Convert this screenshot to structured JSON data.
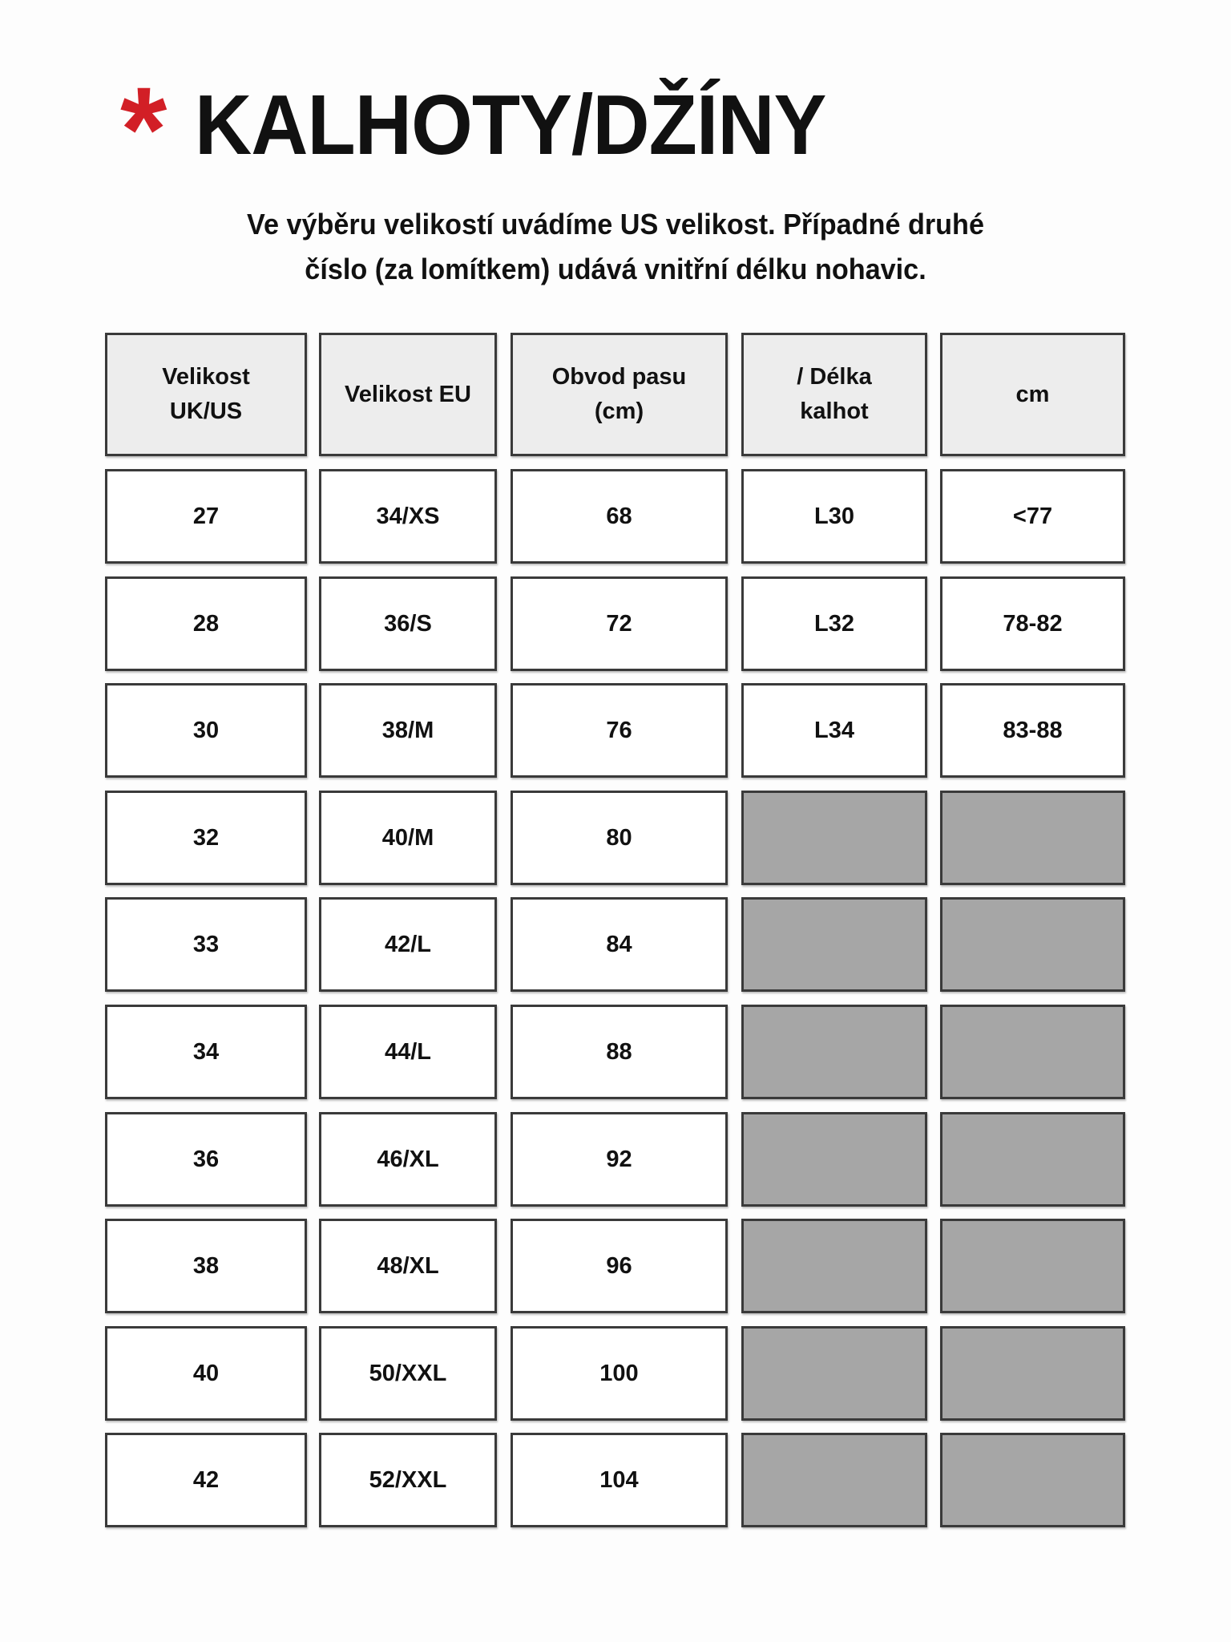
{
  "title": "KALHOTY/DŽÍNY",
  "asterisk": "*",
  "subtitle_lines": [
    "Ve výběru velikostí uvádíme US velikost. Případné druhé",
    "číslo (za lomítkem) udává vnitřní délku nohavic."
  ],
  "colors": {
    "accent": "#d21f26",
    "header_bg": "#ededed",
    "unavailable": "#a6a6a6"
  },
  "table": {
    "headers": [
      "Velikost\nUK/US",
      "Velikost EU",
      "Obvod pasu\n(cm)",
      "/ Délka\nkalhot",
      "cm"
    ],
    "rows": [
      [
        "27",
        "34/XS",
        "68",
        "L30",
        "<77"
      ],
      [
        "28",
        "36/S",
        "72",
        "L32",
        "78-82"
      ],
      [
        "30",
        "38/M",
        "76",
        "L34",
        "83-88"
      ],
      [
        "32",
        "40/M",
        "80",
        "",
        ""
      ],
      [
        "33",
        "42/L",
        "84",
        "",
        ""
      ],
      [
        "34",
        "44/L",
        "88",
        "",
        ""
      ],
      [
        "36",
        "46/XL",
        "92",
        "",
        ""
      ],
      [
        "38",
        "48/XL",
        "96",
        "",
        ""
      ],
      [
        "40",
        "50/XXL",
        "100",
        "",
        ""
      ],
      [
        "42",
        "52/XXL",
        "104",
        "",
        ""
      ]
    ]
  }
}
